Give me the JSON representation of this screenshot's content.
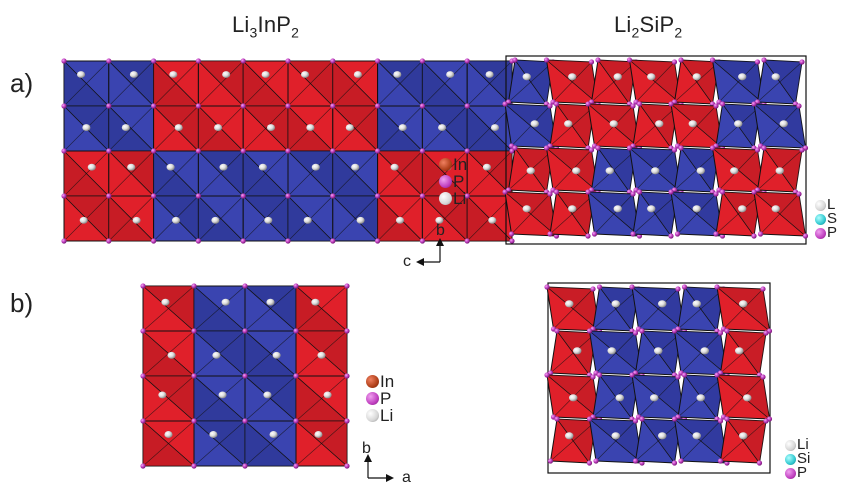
{
  "titles": {
    "left": {
      "base": "Li",
      "s1": "3",
      "mid": "InP",
      "s2": "2"
    },
    "right": {
      "base": "Li",
      "s1": "2",
      "mid": "SiP",
      "s2": "2"
    }
  },
  "panels": {
    "a": "a)",
    "b": "b)"
  },
  "colors": {
    "red": "#e0202a",
    "red_dark": "#a81820",
    "blue": "#3a44b0",
    "blue_dark": "#262e86",
    "phosphorus": "#c040c0",
    "indium": "#b0401a",
    "lithium": "#e6e6e6",
    "silicon": "#30c8d0"
  },
  "legends": {
    "a_left": [
      "In",
      "P",
      "Li"
    ],
    "a_right": [
      "L",
      "S",
      "P"
    ],
    "b_left": [
      "In",
      "P",
      "Li"
    ],
    "b_right": [
      "Li",
      "Si",
      "P"
    ]
  },
  "axes": {
    "a": {
      "vertical": "b",
      "horizontal": "c"
    },
    "b": {
      "vertical": "b",
      "horizontal": "a"
    }
  }
}
